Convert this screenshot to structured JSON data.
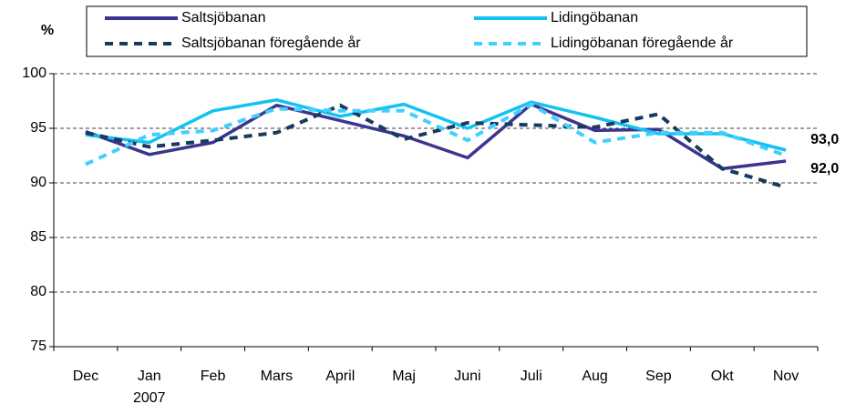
{
  "chart_data": {
    "type": "line",
    "y_label": "%",
    "categories": [
      "Dec",
      "Jan",
      "Feb",
      "Mars",
      "April",
      "Maj",
      "Juni",
      "Juli",
      "Aug",
      "Sep",
      "Okt",
      "Nov"
    ],
    "year_label": "2007",
    "series": [
      {
        "name": "Saltsjöbanan",
        "color": "#3b3590",
        "dash": false,
        "values": [
          94.7,
          92.6,
          93.7,
          97.1,
          95.7,
          94.3,
          92.3,
          97.2,
          94.8,
          94.9,
          91.3,
          92.0
        ],
        "value_labels": [
          null,
          null,
          null,
          null,
          null,
          null,
          null,
          null,
          null,
          null,
          null,
          "92,0"
        ]
      },
      {
        "name": "Lidingöbanan",
        "color": "#12c2f0",
        "dash": false,
        "values": [
          94.4,
          93.7,
          96.6,
          97.6,
          96.1,
          97.2,
          95.0,
          97.4,
          96.0,
          94.5,
          94.5,
          93.0
        ],
        "value_labels": [
          null,
          null,
          null,
          null,
          null,
          null,
          null,
          null,
          null,
          null,
          null,
          "93,0"
        ]
      },
      {
        "name": "Saltsjöbanan föregående år",
        "color": "#173a5e",
        "dash": true,
        "values": [
          94.6,
          93.3,
          93.9,
          94.6,
          97.1,
          94.0,
          95.5,
          95.3,
          95.1,
          96.3,
          91.3,
          89.6
        ]
      },
      {
        "name": "Lidingöbanan föregående år",
        "color": "#40d0ff",
        "dash": true,
        "values": [
          91.7,
          94.4,
          94.8,
          96.8,
          96.6,
          96.6,
          93.9,
          97.2,
          93.7,
          94.6,
          94.6,
          92.5
        ]
      }
    ],
    "ylim": [
      75,
      100
    ],
    "yticks": [
      75,
      80,
      85,
      90,
      95,
      100
    ],
    "grid": true
  }
}
